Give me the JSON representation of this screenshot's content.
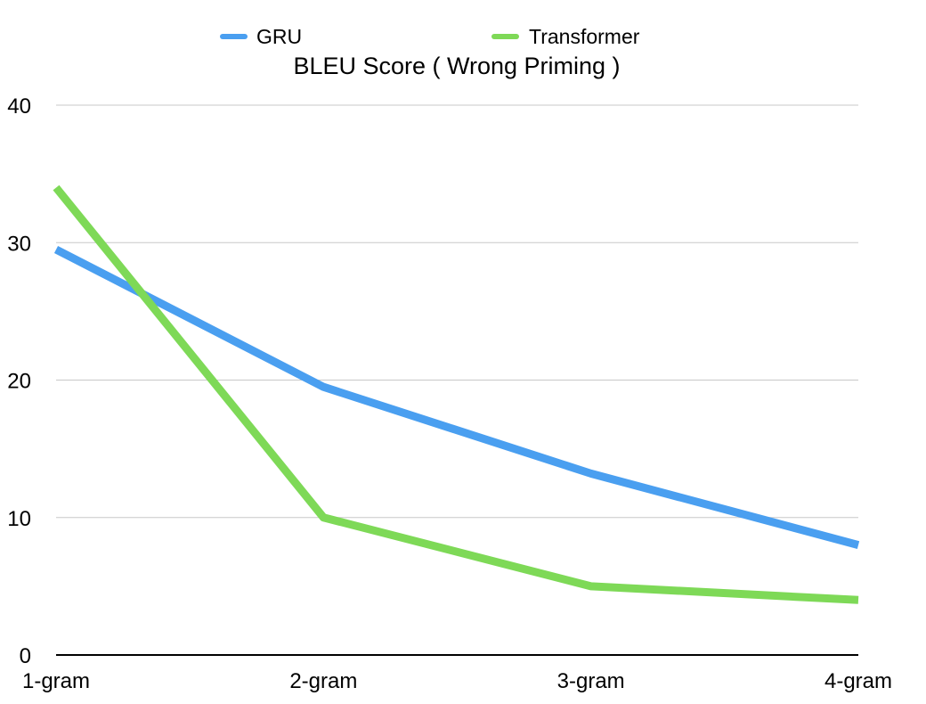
{
  "chart_data": {
    "type": "line",
    "title": "BLEU Score ( Wrong Priming )",
    "xlabel": "",
    "ylabel": "",
    "categories": [
      "1-gram",
      "2-gram",
      "3-gram",
      "4-gram"
    ],
    "ylim": [
      0,
      40
    ],
    "yticks": [
      0,
      10,
      20,
      30,
      40
    ],
    "grid": true,
    "legend_position": "top",
    "series": [
      {
        "name": "GRU",
        "color": "#4a9ff0",
        "values": [
          29.5,
          19.5,
          13.2,
          8.0
        ]
      },
      {
        "name": "Transformer",
        "color": "#7ed957",
        "values": [
          34.0,
          10.0,
          5.0,
          4.0
        ]
      }
    ]
  }
}
